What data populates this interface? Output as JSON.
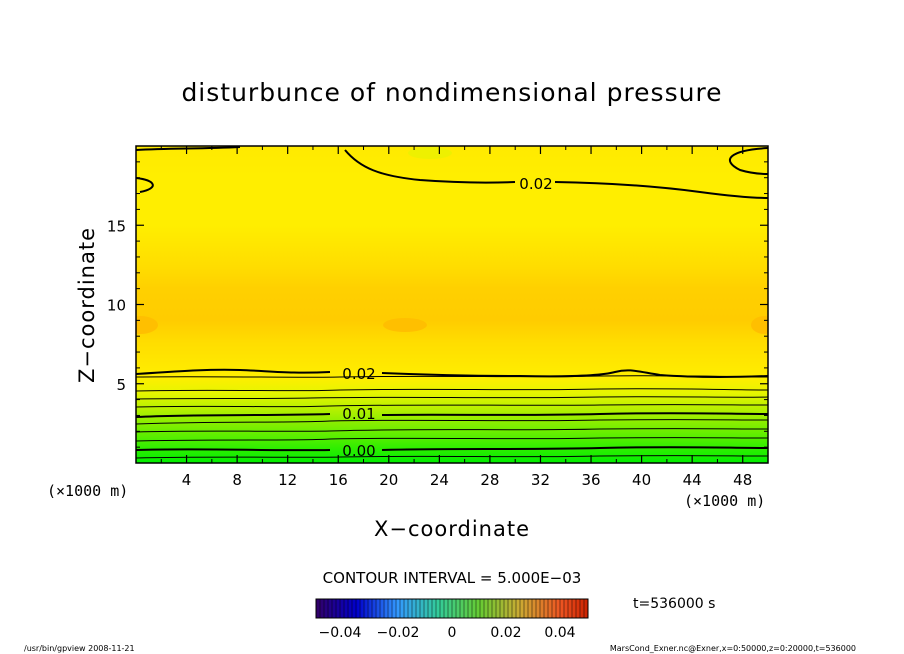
{
  "chart_data": {
    "type": "contour",
    "title": "disturbunce of nondimensional pressure",
    "xlabel": "X−coordinate",
    "ylabel": "Z−coordinate",
    "x_unit_left": "(×1000 m)",
    "x_unit_right": "(×1000 m)",
    "xlim": [
      0,
      50
    ],
    "ylim": [
      0,
      20
    ],
    "x_ticks": [
      4,
      8,
      12,
      16,
      20,
      24,
      28,
      32,
      36,
      40,
      44,
      48
    ],
    "y_ticks": [
      5,
      10,
      15
    ],
    "contour_interval_text": "CONTOUR INTERVAL = 5.000E−03",
    "time_text": "t=536000 s",
    "colorbar_ticks": [
      "−0.04",
      "−0.02",
      "0",
      "0.02",
      "0.04"
    ],
    "contour_labels": [
      {
        "text": "0.02",
        "x": 31.5,
        "z": 17.7
      },
      {
        "text": "0.02",
        "x": 17.5,
        "z": 5.6
      },
      {
        "text": "0.01",
        "x": 17.5,
        "z": 3.1
      },
      {
        "text": "0.00",
        "x": 17.5,
        "z": 0.8
      }
    ],
    "footer_left": "/usr/bin/gpview   2008-11-21",
    "footer_right": "MarsCond_Exner.nc@Exner,x=0:50000,z=0:20000,t=536000"
  },
  "colors": {
    "low": "#00ee00",
    "mid": "#ccff00",
    "high": "#ffee00",
    "peak": "#ffcc00"
  }
}
